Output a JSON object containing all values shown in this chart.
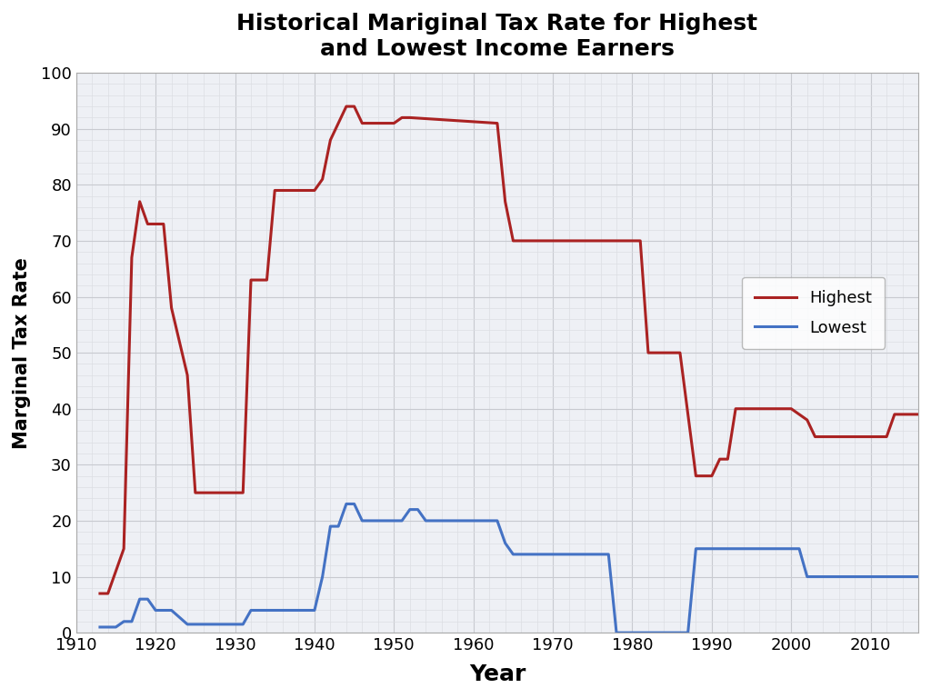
{
  "title": "Historical Mariginal Tax Rate for Highest\nand Lowest Income Earners",
  "xlabel": "Year",
  "ylabel": "Marginal Tax Rate",
  "xlim": [
    1910,
    2016
  ],
  "ylim": [
    0,
    100
  ],
  "xticks": [
    1910,
    1920,
    1930,
    1940,
    1950,
    1960,
    1970,
    1980,
    1990,
    2000,
    2010
  ],
  "yticks": [
    0,
    10,
    20,
    30,
    40,
    50,
    60,
    70,
    80,
    90,
    100
  ],
  "background_color": "#eef0f5",
  "fig_background_color": "#ffffff",
  "grid_major_color": "#c8cad0",
  "grid_minor_color": "#dcdee3",
  "highest_color": "#aa2222",
  "lowest_color": "#4472c4",
  "highest_data": [
    [
      1913,
      7
    ],
    [
      1914,
      7
    ],
    [
      1916,
      15
    ],
    [
      1917,
      67
    ],
    [
      1918,
      77
    ],
    [
      1919,
      73
    ],
    [
      1920,
      73
    ],
    [
      1921,
      73
    ],
    [
      1922,
      58
    ],
    [
      1924,
      46
    ],
    [
      1925,
      25
    ],
    [
      1931,
      25
    ],
    [
      1932,
      63
    ],
    [
      1933,
      63
    ],
    [
      1934,
      63
    ],
    [
      1935,
      79
    ],
    [
      1936,
      79
    ],
    [
      1940,
      79
    ],
    [
      1941,
      81
    ],
    [
      1942,
      88
    ],
    [
      1944,
      94
    ],
    [
      1945,
      94
    ],
    [
      1946,
      91
    ],
    [
      1947,
      91
    ],
    [
      1950,
      91
    ],
    [
      1951,
      92
    ],
    [
      1952,
      92
    ],
    [
      1963,
      91
    ],
    [
      1964,
      77
    ],
    [
      1965,
      70
    ],
    [
      1981,
      70
    ],
    [
      1982,
      50
    ],
    [
      1986,
      50
    ],
    [
      1987,
      39
    ],
    [
      1988,
      28
    ],
    [
      1990,
      28
    ],
    [
      1991,
      31
    ],
    [
      1992,
      31
    ],
    [
      1993,
      40
    ],
    [
      2000,
      40
    ],
    [
      2001,
      39
    ],
    [
      2002,
      38
    ],
    [
      2003,
      35
    ],
    [
      2012,
      35
    ],
    [
      2013,
      39
    ],
    [
      2016,
      39
    ]
  ],
  "lowest_data": [
    [
      1913,
      1
    ],
    [
      1915,
      1
    ],
    [
      1916,
      2
    ],
    [
      1917,
      2
    ],
    [
      1918,
      6
    ],
    [
      1919,
      6
    ],
    [
      1920,
      4
    ],
    [
      1921,
      4
    ],
    [
      1922,
      4
    ],
    [
      1924,
      1.5
    ],
    [
      1925,
      1.5
    ],
    [
      1931,
      1.5
    ],
    [
      1932,
      4
    ],
    [
      1933,
      4
    ],
    [
      1936,
      4
    ],
    [
      1940,
      4
    ],
    [
      1941,
      10
    ],
    [
      1942,
      19
    ],
    [
      1943,
      19
    ],
    [
      1944,
      23
    ],
    [
      1945,
      23
    ],
    [
      1946,
      20
    ],
    [
      1947,
      20
    ],
    [
      1950,
      20
    ],
    [
      1951,
      20
    ],
    [
      1952,
      22
    ],
    [
      1953,
      22
    ],
    [
      1954,
      20
    ],
    [
      1963,
      20
    ],
    [
      1964,
      16
    ],
    [
      1965,
      14
    ],
    [
      1976,
      14
    ],
    [
      1977,
      14
    ],
    [
      1978,
      0
    ],
    [
      1979,
      0
    ],
    [
      1987,
      0
    ],
    [
      1988,
      15
    ],
    [
      2000,
      15
    ],
    [
      2001,
      15
    ],
    [
      2002,
      10
    ],
    [
      2003,
      10
    ],
    [
      2012,
      10
    ],
    [
      2013,
      10
    ],
    [
      2016,
      10
    ]
  ]
}
